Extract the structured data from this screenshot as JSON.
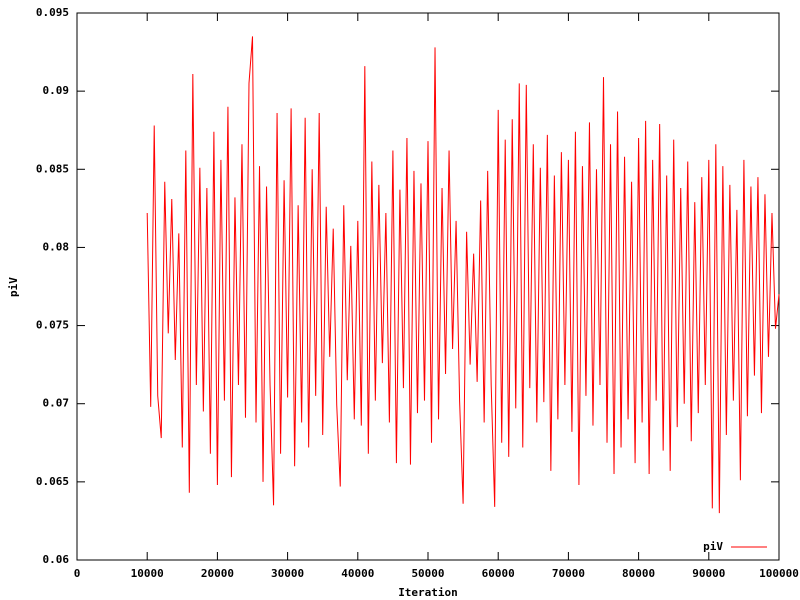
{
  "chart_data": {
    "type": "line",
    "x_label": "Iteration",
    "y_label": "piV",
    "x": [
      10000,
      10500,
      11000,
      11500,
      12000,
      12500,
      13000,
      13500,
      14000,
      14500,
      15000,
      15500,
      16000,
      16500,
      17000,
      17500,
      18000,
      18500,
      19000,
      19500,
      20000,
      20500,
      21000,
      21500,
      22000,
      22500,
      23000,
      23500,
      24000,
      24500,
      25000,
      25500,
      26000,
      26500,
      27000,
      27500,
      28000,
      28500,
      29000,
      29500,
      30000,
      30500,
      31000,
      31500,
      32000,
      32500,
      33000,
      33500,
      34000,
      34500,
      35000,
      35500,
      36000,
      36500,
      37000,
      37500,
      38000,
      38500,
      39000,
      39500,
      40000,
      40500,
      41000,
      41500,
      42000,
      42500,
      43000,
      43500,
      44000,
      44500,
      45000,
      45500,
      46000,
      46500,
      47000,
      47500,
      48000,
      48500,
      49000,
      49500,
      50000,
      50500,
      51000,
      51500,
      52000,
      52500,
      53000,
      53500,
      54000,
      54500,
      55000,
      55500,
      56000,
      56500,
      57000,
      57500,
      58000,
      58500,
      59000,
      59500,
      60000,
      60500,
      61000,
      61500,
      62000,
      62500,
      63000,
      63500,
      64000,
      64500,
      65000,
      65500,
      66000,
      66500,
      67000,
      67500,
      68000,
      68500,
      69000,
      69500,
      70000,
      70500,
      71000,
      71500,
      72000,
      72500,
      73000,
      73500,
      74000,
      74500,
      75000,
      75500,
      76000,
      76500,
      77000,
      77500,
      78000,
      78500,
      79000,
      79500,
      80000,
      80500,
      81000,
      81500,
      82000,
      82500,
      83000,
      83500,
      84000,
      84500,
      85000,
      85500,
      86000,
      86500,
      87000,
      87500,
      88000,
      88500,
      89000,
      89500,
      90000,
      90500,
      91000,
      91500,
      92000,
      92500,
      93000,
      93500,
      94000,
      94500,
      95000,
      95500,
      96000,
      96500,
      97000,
      97500,
      98000,
      98500,
      99000,
      99500,
      100000
    ],
    "series": [
      {
        "name": "piV",
        "color": "#ff0000",
        "values": [
          0.0822,
          0.0698,
          0.0878,
          0.0705,
          0.0678,
          0.0842,
          0.0745,
          0.0831,
          0.0728,
          0.0809,
          0.0672,
          0.0862,
          0.0643,
          0.0911,
          0.0712,
          0.0851,
          0.0695,
          0.0838,
          0.0668,
          0.0874,
          0.0648,
          0.0856,
          0.0702,
          0.089,
          0.0653,
          0.0832,
          0.0712,
          0.0866,
          0.0691,
          0.0905,
          0.0935,
          0.0688,
          0.0852,
          0.065,
          0.0839,
          0.0712,
          0.0635,
          0.0886,
          0.0668,
          0.0843,
          0.0704,
          0.0889,
          0.066,
          0.0827,
          0.0688,
          0.0883,
          0.0672,
          0.085,
          0.0705,
          0.0886,
          0.068,
          0.0826,
          0.073,
          0.0812,
          0.0699,
          0.0647,
          0.0827,
          0.0715,
          0.0801,
          0.069,
          0.0817,
          0.0686,
          0.0916,
          0.0668,
          0.0855,
          0.0702,
          0.084,
          0.0726,
          0.0822,
          0.0688,
          0.0862,
          0.0662,
          0.0837,
          0.071,
          0.087,
          0.0661,
          0.0849,
          0.0694,
          0.0841,
          0.0702,
          0.0868,
          0.0675,
          0.0928,
          0.069,
          0.0838,
          0.0719,
          0.0862,
          0.0735,
          0.0817,
          0.0702,
          0.0636,
          0.081,
          0.0725,
          0.0796,
          0.0714,
          0.083,
          0.0688,
          0.0849,
          0.0712,
          0.0634,
          0.0888,
          0.0675,
          0.0869,
          0.0666,
          0.0882,
          0.0697,
          0.0905,
          0.0672,
          0.0904,
          0.071,
          0.0866,
          0.0688,
          0.0851,
          0.0701,
          0.0872,
          0.0657,
          0.0846,
          0.069,
          0.0861,
          0.0712,
          0.0856,
          0.0682,
          0.0874,
          0.0648,
          0.0852,
          0.0705,
          0.088,
          0.0686,
          0.085,
          0.0712,
          0.0909,
          0.0675,
          0.0866,
          0.0655,
          0.0887,
          0.0672,
          0.0858,
          0.069,
          0.0842,
          0.0662,
          0.087,
          0.0688,
          0.0881,
          0.0655,
          0.0856,
          0.0702,
          0.0879,
          0.067,
          0.0846,
          0.0657,
          0.0869,
          0.0685,
          0.0838,
          0.07,
          0.0855,
          0.0676,
          0.0829,
          0.0694,
          0.0845,
          0.0712,
          0.0856,
          0.0633,
          0.0866,
          0.063,
          0.0852,
          0.068,
          0.084,
          0.0702,
          0.0824,
          0.0651,
          0.0856,
          0.0692,
          0.0839,
          0.0718,
          0.0845,
          0.0694,
          0.0834,
          0.073,
          0.0822,
          0.0748,
          0.077
        ]
      }
    ],
    "xlim": [
      0,
      100000
    ],
    "xticks": [
      0,
      10000,
      20000,
      30000,
      40000,
      50000,
      60000,
      70000,
      80000,
      90000,
      100000
    ],
    "ylim": [
      0.06,
      0.095
    ],
    "yticks": [
      0.06,
      0.065,
      0.07,
      0.075,
      0.08,
      0.085,
      0.09,
      0.095
    ],
    "grid": false,
    "legend": "bottom-right"
  }
}
